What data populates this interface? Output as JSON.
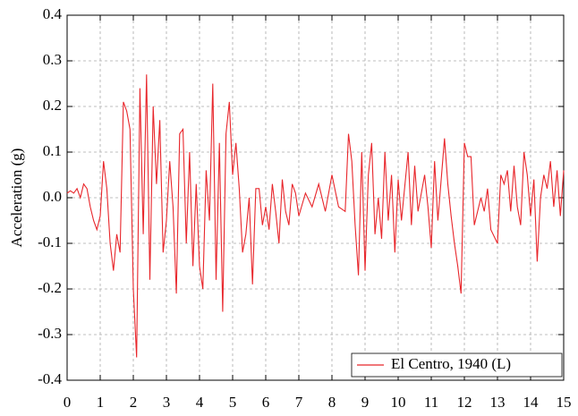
{
  "chart_data": {
    "type": "line",
    "ylabel": "Acceleration (g)",
    "x": [
      0,
      0.1,
      0.2,
      0.3,
      0.4,
      0.5,
      0.6,
      0.7,
      0.8,
      0.9,
      1.0,
      1.1,
      1.2,
      1.3,
      1.4,
      1.5,
      1.6,
      1.7,
      1.8,
      1.9,
      2.0,
      2.1,
      2.2,
      2.3,
      2.4,
      2.5,
      2.6,
      2.7,
      2.8,
      2.9,
      3.0,
      3.1,
      3.2,
      3.3,
      3.4,
      3.5,
      3.6,
      3.7,
      3.8,
      3.9,
      4.0,
      4.1,
      4.2,
      4.3,
      4.4,
      4.5,
      4.6,
      4.7,
      4.8,
      4.9,
      5.0,
      5.1,
      5.2,
      5.3,
      5.4,
      5.5,
      5.6,
      5.7,
      5.8,
      5.9,
      6.0,
      6.1,
      6.2,
      6.3,
      6.4,
      6.5,
      6.6,
      6.7,
      6.8,
      6.9,
      7.0,
      7.2,
      7.4,
      7.6,
      7.8,
      8.0,
      8.2,
      8.4,
      8.5,
      8.6,
      8.7,
      8.8,
      8.9,
      9.0,
      9.1,
      9.2,
      9.3,
      9.4,
      9.5,
      9.6,
      9.7,
      9.8,
      9.9,
      10.0,
      10.1,
      10.3,
      10.4,
      10.5,
      10.6,
      10.8,
      10.9,
      11.0,
      11.1,
      11.2,
      11.3,
      11.4,
      11.5,
      11.6,
      11.7,
      11.8,
      11.9,
      12.0,
      12.1,
      12.2,
      12.3,
      12.4,
      12.5,
      12.6,
      12.7,
      12.8,
      13.0,
      13.1,
      13.2,
      13.3,
      13.4,
      13.5,
      13.6,
      13.7,
      13.8,
      13.9,
      14.0,
      14.1,
      14.2,
      14.3,
      14.4,
      14.5,
      14.6,
      14.7,
      14.8,
      14.9,
      15.0
    ],
    "series": [
      {
        "name": "El Centro, 1940 (L)",
        "color": "#e8262b",
        "values": [
          0.01,
          0.015,
          0.01,
          0.02,
          0.0,
          0.03,
          0.02,
          -0.02,
          -0.05,
          -0.07,
          -0.04,
          0.08,
          0.02,
          -0.1,
          -0.16,
          -0.08,
          -0.12,
          0.21,
          0.19,
          0.15,
          -0.2,
          -0.35,
          0.24,
          -0.08,
          0.27,
          -0.18,
          0.2,
          0.03,
          0.17,
          -0.12,
          -0.05,
          0.08,
          -0.02,
          -0.21,
          0.14,
          0.15,
          -0.1,
          0.1,
          -0.15,
          0.03,
          -0.15,
          -0.2,
          0.06,
          -0.05,
          0.25,
          -0.18,
          0.12,
          -0.25,
          0.14,
          0.21,
          0.05,
          0.12,
          0.02,
          -0.12,
          -0.08,
          0.0,
          -0.19,
          0.02,
          0.02,
          -0.06,
          -0.02,
          -0.07,
          0.03,
          -0.03,
          -0.1,
          0.04,
          -0.03,
          -0.06,
          0.03,
          0.01,
          -0.04,
          0.01,
          -0.02,
          0.03,
          -0.03,
          0.05,
          -0.02,
          -0.03,
          0.14,
          0.08,
          -0.06,
          -0.17,
          0.1,
          -0.16,
          0.05,
          0.12,
          -0.08,
          0.0,
          -0.09,
          0.1,
          -0.05,
          0.05,
          -0.12,
          0.04,
          -0.05,
          0.1,
          -0.06,
          0.07,
          -0.03,
          0.05,
          -0.02,
          -0.11,
          0.08,
          -0.05,
          0.04,
          0.13,
          0.03,
          -0.04,
          -0.1,
          -0.15,
          -0.21,
          0.12,
          0.09,
          0.09,
          -0.06,
          -0.03,
          0.0,
          -0.03,
          0.02,
          -0.07,
          -0.1,
          0.05,
          0.03,
          0.06,
          -0.03,
          0.07,
          -0.02,
          -0.06,
          0.1,
          0.05,
          -0.04,
          0.04,
          -0.14,
          0.0,
          0.05,
          0.02,
          0.08,
          -0.02,
          0.06,
          -0.04,
          0.06
        ]
      }
    ],
    "xlim": [
      0,
      15
    ],
    "xticks": [
      0,
      1,
      2,
      3,
      4,
      5,
      6,
      7,
      8,
      9,
      10,
      11,
      12,
      13,
      14,
      15
    ],
    "ylim": [
      -0.4,
      0.4
    ],
    "yticks": [
      -0.4,
      -0.3,
      -0.2,
      -0.1,
      {
        "value": 0,
        "label": "0.0"
      },
      0.1,
      0.2,
      0.3,
      0.4
    ],
    "grid": true,
    "legend": "lower right"
  }
}
